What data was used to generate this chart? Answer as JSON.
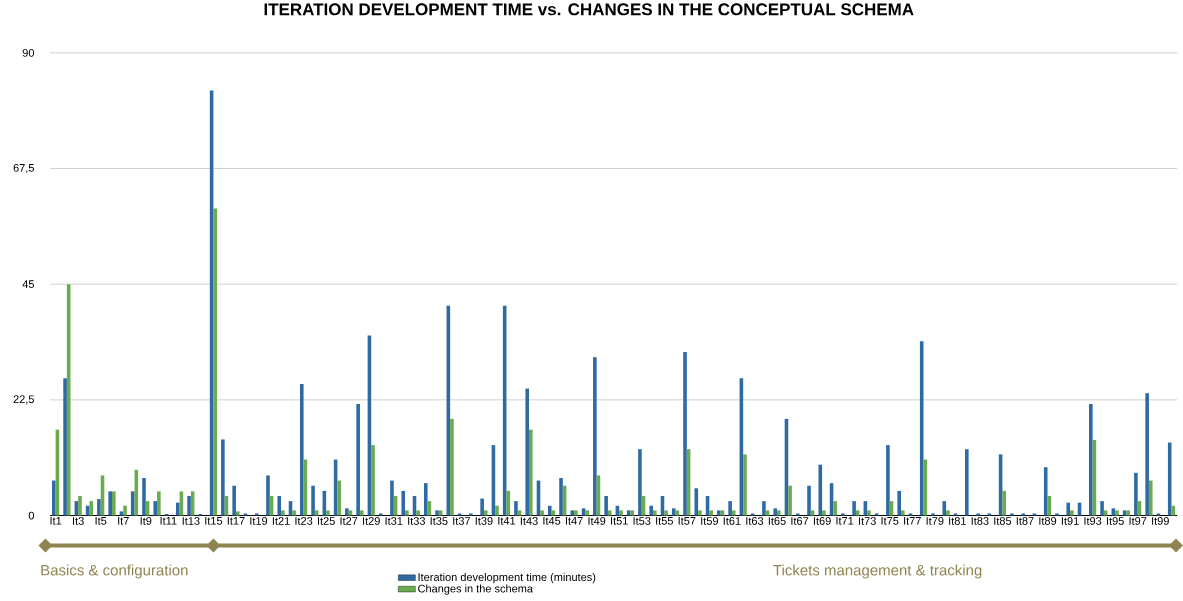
{
  "chart_data": {
    "type": "bar",
    "title": "ITERATION DEVELOPMENT TIME vs. CHANGES IN THE CONCEPTUAL SCHEMA",
    "categories": [
      "It1",
      null,
      "It3",
      null,
      "It5",
      null,
      "It7",
      null,
      "It9",
      null,
      "It11",
      null,
      "It13",
      null,
      "It15",
      null,
      "It17",
      null,
      "It19",
      null,
      "It21",
      null,
      "It23",
      null,
      "It25",
      null,
      "It27",
      null,
      "It29",
      null,
      "It31",
      null,
      "It33",
      null,
      "It35",
      null,
      "It37",
      null,
      "It39",
      null,
      "It41",
      null,
      "It43",
      null,
      "It45",
      null,
      "It47",
      null,
      "It49",
      null,
      "It51",
      null,
      "It53",
      null,
      "It55",
      null,
      "It57",
      null,
      "It59",
      null,
      "It61",
      null,
      "It63",
      null,
      "It65",
      null,
      "It67",
      null,
      "It69",
      null,
      "It71",
      null,
      "It73",
      null,
      "It75",
      null,
      "It77",
      null,
      "It79",
      null,
      "It81",
      null,
      "It83",
      null,
      "It85",
      null,
      "It87",
      null,
      "It89",
      null,
      "It91",
      null,
      "It93",
      null,
      "It95",
      null,
      "It97",
      null,
      "It99",
      null
    ],
    "series": [
      {
        "name": "Iteration development time (minutes)",
        "color": "#2f6aa3",
        "values": [
          6.8,
          26.7,
          2.8,
          1.9,
          3.2,
          4.7,
          0.8,
          4.7,
          7.3,
          2.8,
          0.3,
          2.5,
          3.8,
          0.3,
          82.7,
          14.8,
          5.8,
          0.4,
          0.4,
          7.8,
          3.8,
          2.8,
          25.6,
          5.8,
          4.8,
          10.9,
          1.4,
          21.7,
          35,
          0.4,
          6.8,
          4.8,
          3.8,
          6.3,
          1,
          40.8,
          0.4,
          0.4,
          3.3,
          13.7,
          40.8,
          2.8,
          24.7,
          6.8,
          1.9,
          7.3,
          1,
          1.4,
          30.8,
          3.8,
          1.9,
          1,
          12.9,
          1.9,
          3.8,
          1.4,
          31.8,
          5.3,
          3.8,
          1,
          2.8,
          26.7,
          0.4,
          2.8,
          1.4,
          18.8,
          0.4,
          5.8,
          9.9,
          6.3,
          0.4,
          2.8,
          2.8,
          0.4,
          13.7,
          4.8,
          0.4,
          33.9,
          0.4,
          2.8,
          0.4,
          12.9,
          0.4,
          0.4,
          11.9,
          0.4,
          0.4,
          0.4,
          9.4,
          0.4,
          2.5,
          2.5,
          21.7,
          2.8,
          1.4,
          1,
          8.3,
          23.8,
          0.4,
          14.2
        ]
      },
      {
        "name": "Changes in the schema",
        "color": "#6aaa50",
        "values": [
          16.7,
          45,
          3.8,
          2.8,
          7.8,
          4.7,
          1.9,
          8.9,
          2.8,
          4.7,
          0,
          4.7,
          4.7,
          0,
          59.7,
          3.8,
          0.8,
          0,
          0,
          3.8,
          1,
          1,
          10.9,
          1,
          1,
          6.8,
          1,
          1,
          13.7,
          0,
          3.8,
          1,
          1,
          2.8,
          1,
          18.8,
          0,
          0,
          1,
          1.9,
          4.8,
          1,
          16.7,
          1,
          1,
          5.8,
          1,
          1,
          7.8,
          1,
          1,
          1,
          3.8,
          1,
          1,
          1,
          12.9,
          1,
          1,
          1,
          1,
          11.9,
          0,
          1,
          1,
          5.8,
          0,
          1,
          1,
          2.8,
          0,
          1,
          1,
          0,
          2.8,
          1,
          0,
          10.9,
          0,
          1,
          0,
          0,
          0,
          0,
          4.8,
          0,
          0,
          0,
          3.8,
          0,
          1,
          0,
          14.7,
          1,
          1,
          1,
          2.8,
          6.8,
          0,
          1.9
        ]
      }
    ],
    "ylim": [
      0,
      90
    ],
    "yticks": [
      0,
      {
        "value": 22.5,
        "label": "22,5"
      },
      45,
      {
        "value": 67.5,
        "label": "67,5"
      },
      90
    ],
    "grid": "y",
    "legend": "bottom",
    "annotations": [
      "Basics & configuration",
      "Tickets management & tracking"
    ]
  }
}
